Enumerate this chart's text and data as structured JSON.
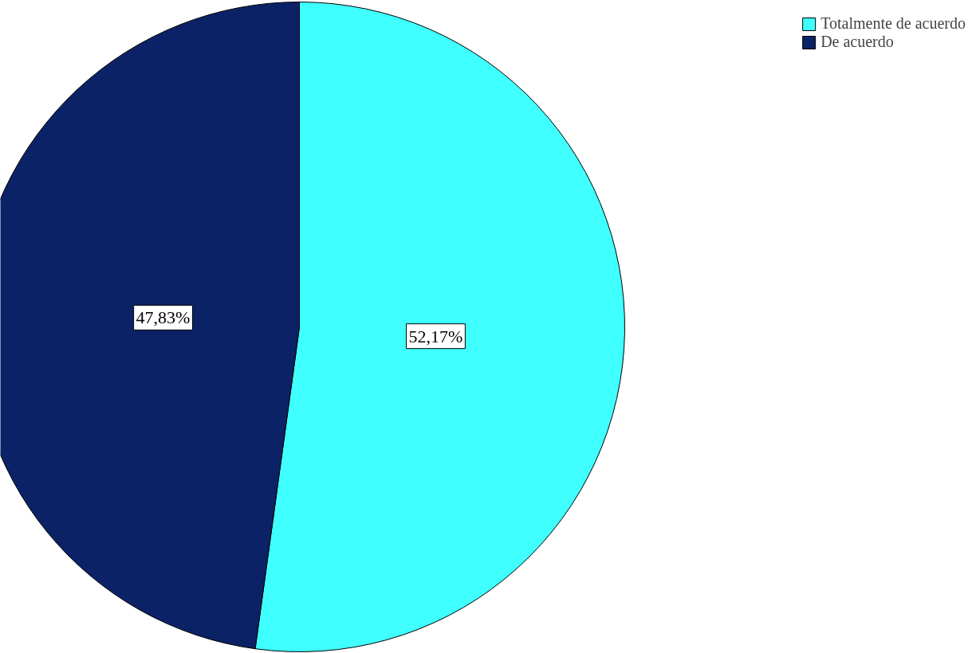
{
  "chart_data": {
    "type": "pie",
    "categories": [
      "Totalmente de acuerdo",
      "De acuerdo"
    ],
    "values": [
      52.17,
      47.83
    ],
    "colors": [
      "#40ffff",
      "#0c2266"
    ],
    "value_labels": [
      "52,17%",
      "47,83%"
    ],
    "legend": "top right"
  }
}
